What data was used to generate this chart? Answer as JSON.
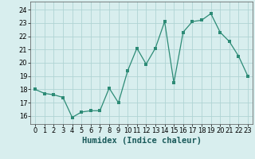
{
  "x": [
    0,
    1,
    2,
    3,
    4,
    5,
    6,
    7,
    8,
    9,
    10,
    11,
    12,
    13,
    14,
    15,
    16,
    17,
    18,
    19,
    20,
    21,
    22,
    23
  ],
  "y": [
    18.0,
    17.7,
    17.6,
    17.4,
    15.9,
    16.3,
    16.4,
    16.4,
    18.1,
    17.0,
    19.4,
    21.1,
    19.9,
    21.1,
    23.1,
    18.5,
    22.3,
    23.1,
    23.2,
    23.7,
    22.3,
    21.6,
    20.5,
    19.0
  ],
  "xlabel": "Humidex (Indice chaleur)",
  "xlim": [
    -0.5,
    23.5
  ],
  "ylim": [
    15.4,
    24.6
  ],
  "yticks": [
    16,
    17,
    18,
    19,
    20,
    21,
    22,
    23,
    24
  ],
  "xticks": [
    0,
    1,
    2,
    3,
    4,
    5,
    6,
    7,
    8,
    9,
    10,
    11,
    12,
    13,
    14,
    15,
    16,
    17,
    18,
    19,
    20,
    21,
    22,
    23
  ],
  "line_color": "#2d8b76",
  "marker_color": "#2d8b76",
  "bg_color": "#d8eeee",
  "grid_color": "#b0d4d4",
  "tick_fontsize": 6,
  "xlabel_fontsize": 7.5,
  "marker_size": 2.5,
  "linewidth": 0.9
}
